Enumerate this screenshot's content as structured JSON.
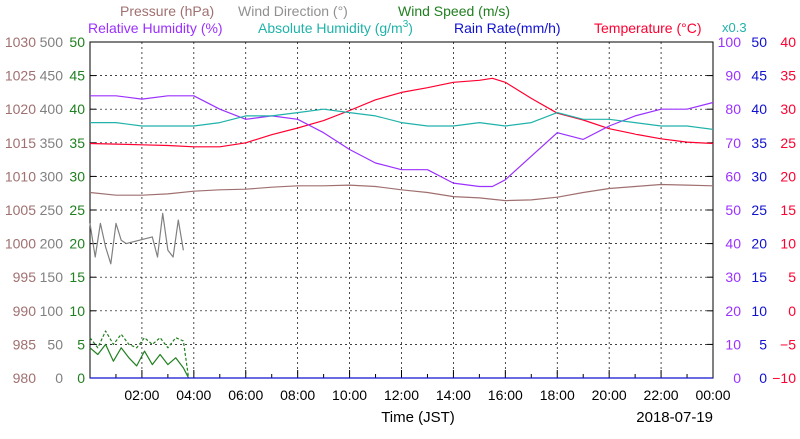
{
  "chart_data": {
    "type": "line",
    "date": "2018-07-19",
    "xlabel": "Time (JST)",
    "x_ticks": [
      "02:00",
      "04:00",
      "06:00",
      "08:00",
      "10:00",
      "12:00",
      "14:00",
      "16:00",
      "18:00",
      "20:00",
      "22:00",
      "00:00"
    ],
    "x_range_hours": [
      0,
      24
    ],
    "grid": true,
    "legend_rows": [
      [
        {
          "label": "Pressure (hPa)",
          "color": "#a07070"
        },
        {
          "label": "Wind Direction (°)",
          "color": "#909090"
        },
        {
          "label": "Wind Speed (m/s)",
          "color": "#208020"
        }
      ],
      [
        {
          "label": "Relative Humidity (%)",
          "color": "#9b30ff"
        },
        {
          "label": "Absolute Humidity (g/m",
          "sup": "3",
          "close": ")",
          "color": "#20b2aa"
        },
        {
          "label": "Rain Rate(mm/h)",
          "color": "#1010d0"
        },
        {
          "label": "Temperature (°C)",
          "color": "#ff0030"
        }
      ]
    ],
    "abs_humidity_scale_note": "x0.3",
    "axes": {
      "pressure": {
        "label": "Pressure",
        "color": "#a07070",
        "ylim": [
          980,
          1030
        ],
        "ticks": [
          980,
          985,
          990,
          995,
          1000,
          1005,
          1010,
          1015,
          1020,
          1025,
          1030
        ]
      },
      "wind_direction": {
        "label": "Wind Direction",
        "color": "#808080",
        "ylim": [
          0,
          500
        ],
        "ticks": [
          0,
          50,
          100,
          150,
          200,
          250,
          300,
          350,
          400,
          450,
          500
        ]
      },
      "wind_speed": {
        "label": "Wind Speed",
        "color": "#208020",
        "ylim": [
          0,
          50
        ],
        "ticks": [
          0,
          5,
          10,
          15,
          20,
          25,
          30,
          35,
          40,
          45,
          50
        ]
      },
      "humidity": {
        "label": "Relative Humidity",
        "color": "#9b30ff",
        "ylim": [
          0,
          100
        ],
        "ticks": [
          0,
          10,
          20,
          30,
          40,
          50,
          60,
          70,
          80,
          90,
          100
        ]
      },
      "rain_rate": {
        "label": "Rain Rate",
        "color": "#1010d0",
        "ylim": [
          0,
          50
        ],
        "ticks": [
          0,
          5,
          10,
          15,
          20,
          25,
          30,
          35,
          40,
          45,
          50
        ]
      },
      "temperature": {
        "label": "Temperature",
        "color": "#ff0030",
        "ylim": [
          -10,
          40
        ],
        "ticks": [
          "−10",
          "−5",
          "0",
          "5",
          "10",
          "15",
          "20",
          "25",
          "30",
          "35",
          "40"
        ]
      }
    },
    "series": [
      {
        "name": "Temperature",
        "color": "#ff0030",
        "axis": "temperature",
        "x": [
          0,
          1,
          2,
          3,
          4,
          5,
          6,
          7,
          8,
          9,
          10,
          11,
          12,
          13,
          14,
          15,
          15.5,
          16,
          17,
          18,
          19,
          20,
          21,
          22,
          23,
          24
        ],
        "y": [
          24.9,
          24.8,
          24.7,
          24.6,
          24.4,
          24.4,
          25.0,
          26.2,
          27.2,
          28.3,
          29.8,
          31.4,
          32.5,
          33.2,
          34.0,
          34.3,
          34.6,
          34.0,
          31.6,
          29.4,
          28.4,
          27.1,
          26.3,
          25.6,
          25.1,
          24.9
        ]
      },
      {
        "name": "Relative Humidity",
        "color": "#9b30ff",
        "axis": "humidity",
        "x": [
          0,
          1,
          2,
          3,
          4,
          5,
          6,
          7,
          8,
          9,
          10,
          11,
          12,
          13,
          14,
          15,
          15.5,
          16,
          17,
          18,
          19,
          20,
          21,
          22,
          23,
          24
        ],
        "y": [
          84,
          84,
          83,
          84,
          84,
          80,
          77,
          78,
          77,
          73,
          68,
          64,
          62,
          62,
          58,
          57,
          57,
          59,
          66,
          73,
          71,
          75,
          78,
          80,
          80,
          82
        ]
      },
      {
        "name": "Absolute Humidity",
        "color": "#20b2aa",
        "axis": "humidity",
        "x": [
          0,
          1,
          2,
          3,
          4,
          5,
          6,
          7,
          8,
          9,
          10,
          11,
          12,
          13,
          14,
          15,
          16,
          17,
          18,
          19,
          20,
          21,
          22,
          23,
          24
        ],
        "y": [
          76,
          76,
          75,
          75,
          75,
          76,
          78,
          78,
          79,
          80,
          79,
          78,
          76,
          75,
          75,
          76,
          75,
          76,
          79,
          77,
          77,
          76,
          75,
          75,
          74
        ]
      },
      {
        "name": "Pressure",
        "color": "#a07070",
        "axis": "pressure",
        "x": [
          0,
          1,
          2,
          3,
          4,
          5,
          6,
          7,
          8,
          9,
          10,
          11,
          12,
          13,
          14,
          15,
          16,
          17,
          18,
          19,
          20,
          21,
          22,
          23,
          24
        ],
        "y": [
          1007.6,
          1007.2,
          1007.2,
          1007.4,
          1007.8,
          1008.0,
          1008.1,
          1008.4,
          1008.6,
          1008.6,
          1008.7,
          1008.5,
          1008.0,
          1007.6,
          1007.0,
          1006.8,
          1006.4,
          1006.5,
          1006.9,
          1007.6,
          1008.2,
          1008.5,
          1008.8,
          1008.7,
          1008.6
        ]
      },
      {
        "name": "Wind Direction",
        "color": "#808080",
        "axis": "wind_direction",
        "x": [
          0,
          0.2,
          0.4,
          0.6,
          0.8,
          1.0,
          1.2,
          1.4,
          2.4,
          2.6,
          2.8,
          3.0,
          3.2,
          3.4,
          3.6
        ],
        "y": [
          230,
          180,
          230,
          195,
          170,
          230,
          205,
          200,
          210,
          180,
          245,
          190,
          180,
          235,
          190
        ]
      },
      {
        "name": "Wind Speed",
        "color": "#208020",
        "axis": "wind_speed",
        "x": [
          0,
          0.3,
          0.6,
          0.9,
          1.2,
          1.5,
          1.8,
          2.1,
          2.4,
          2.7,
          3.0,
          3.3,
          3.6,
          3.8
        ],
        "y": [
          4.5,
          3.5,
          5,
          2.5,
          4.5,
          3,
          1.8,
          4,
          2,
          3.5,
          2,
          3,
          1.5,
          0
        ]
      },
      {
        "name": "Wind Speed Peak",
        "color": "#208020",
        "axis": "wind_speed",
        "dashed": true,
        "x": [
          0,
          0.3,
          0.6,
          0.9,
          1.2,
          1.5,
          1.8,
          2.1,
          2.4,
          2.7,
          3.0,
          3.3,
          3.6,
          3.8
        ],
        "y": [
          6,
          4.5,
          7,
          5,
          6.5,
          5,
          4.5,
          6,
          5,
          6,
          4.5,
          6,
          5.5,
          0
        ]
      },
      {
        "name": "Rain Rate",
        "color": "#1010d0",
        "axis": "rain_rate",
        "x": [
          0,
          24
        ],
        "y": [
          0,
          0
        ]
      }
    ]
  }
}
